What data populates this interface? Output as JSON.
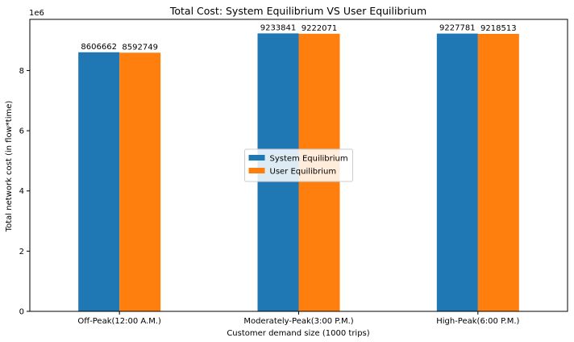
{
  "chart_data": {
    "type": "bar",
    "title": "Total Cost: System Equilibrium VS User Equilibrium",
    "xlabel": "Customer demand size (1000 trips)",
    "ylabel": "Total network cost (in flow*time)",
    "y_scale_label": "1e6",
    "ylim": [
      0,
      9700000
    ],
    "yticks": [
      0,
      2000000,
      4000000,
      6000000,
      8000000
    ],
    "ytick_labels": [
      "0",
      "2",
      "4",
      "6",
      "8"
    ],
    "categories": [
      "Off-Peak(12:00 A.M.)",
      "Moderately-Peak(3:00 P.M.)",
      "High-Peak(6:00 P.M.)"
    ],
    "series": [
      {
        "name": "System Equilibrium",
        "color": "#1f77b4",
        "values": [
          8606662,
          9233841,
          9227781
        ]
      },
      {
        "name": "User Equilibrium",
        "color": "#ff7f0e",
        "values": [
          8592749,
          9222071,
          9218513
        ]
      }
    ],
    "legend_position": "center",
    "grid": false
  }
}
